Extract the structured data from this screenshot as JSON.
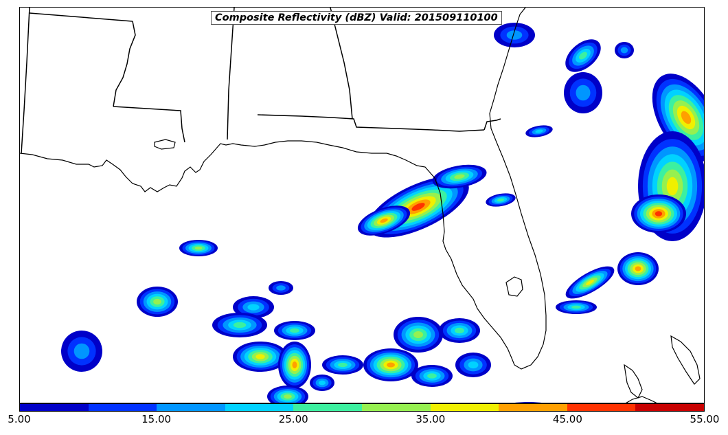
{
  "title": "Composite Reflectivity (dBZ) Valid: 201509110100",
  "colorbar": {
    "colors": [
      "#0000c8",
      "#0032ff",
      "#0096ff",
      "#00d2ff",
      "#3cf0a0",
      "#96f050",
      "#f0f000",
      "#ffa000",
      "#ff3200",
      "#c80000"
    ],
    "tick_labels": [
      "5.00",
      "15.00",
      "25.00",
      "35.00",
      "45.00",
      "55.00"
    ]
  },
  "layers": {
    "boundaries": "state-borders",
    "coastline": "gulf-coast"
  }
}
